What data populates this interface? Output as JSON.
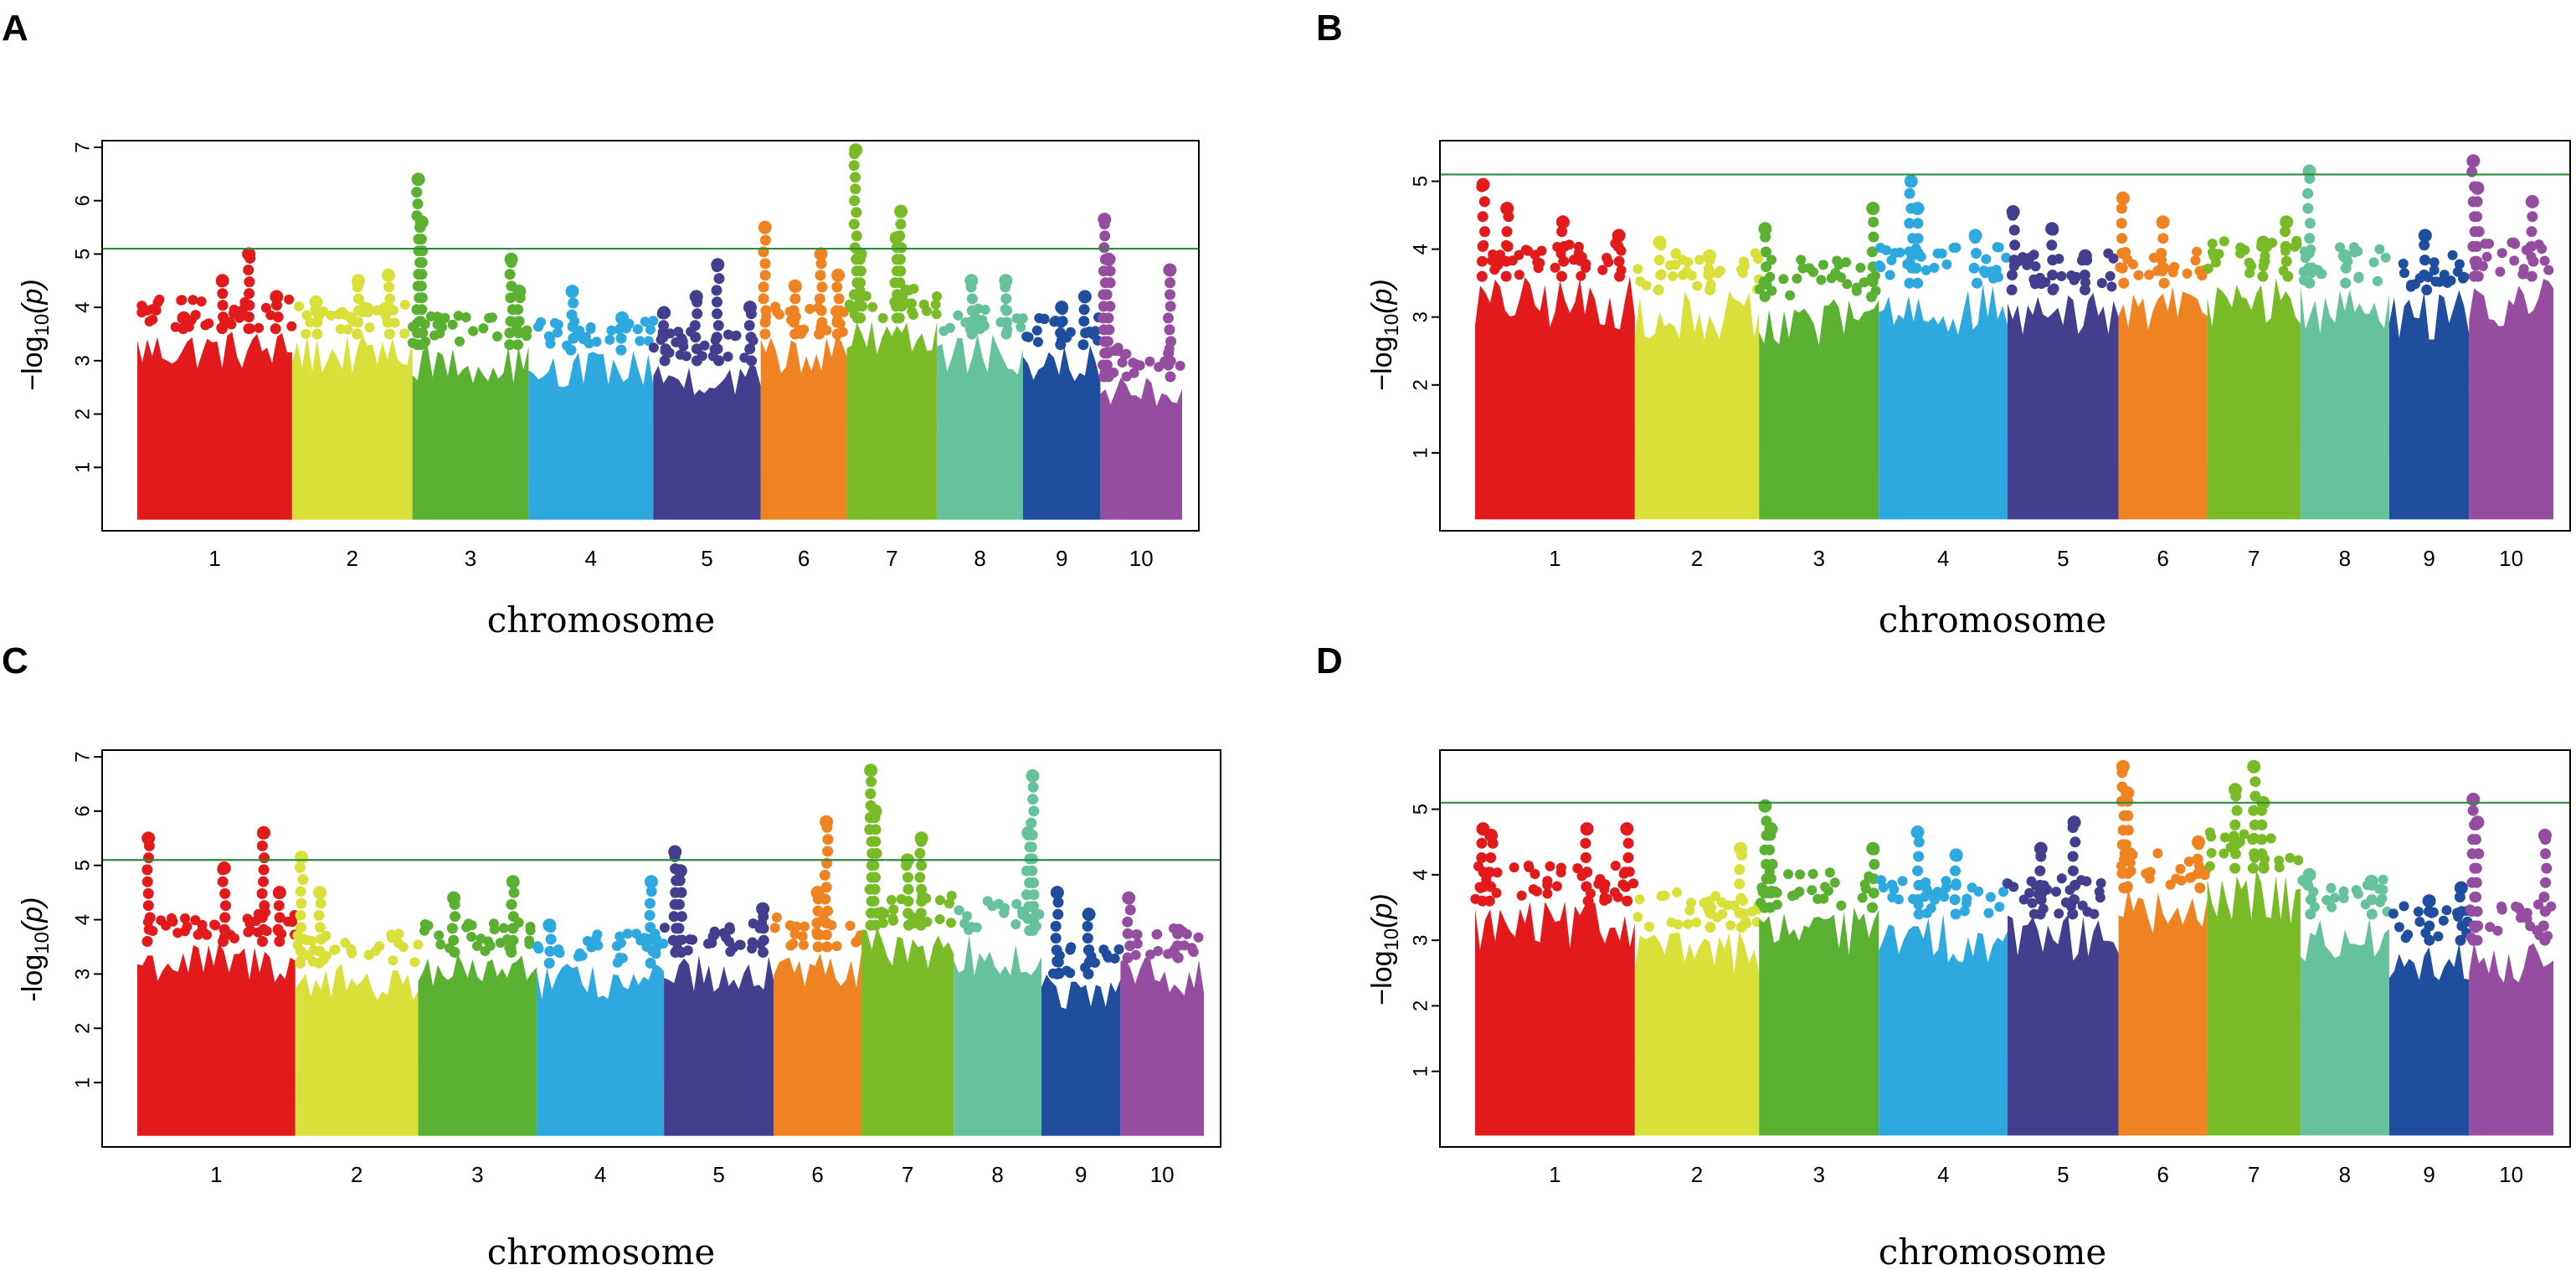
{
  "chart_data": [
    {
      "panel": "A",
      "type": "scatter",
      "subtype": "manhattan",
      "xlabel": "chromosome",
      "ylabel_prefix": "−log",
      "ylabel_sub": "10",
      "ylabel_suffix": "(p)",
      "ylim": [
        0,
        7
      ],
      "yticks": [
        "1",
        "2",
        "3",
        "4",
        "5",
        "6",
        "7"
      ],
      "threshold": 5.1,
      "categories": [
        "1",
        "2",
        "3",
        "4",
        "5",
        "6",
        "7",
        "8",
        "9",
        "10"
      ],
      "chrom_widths": [
        1.8,
        1.4,
        1.35,
        1.45,
        1.25,
        1.0,
        1.05,
        1.0,
        0.9,
        0.95
      ],
      "series": [
        {
          "name": "1",
          "base_max": 3.6,
          "peaks": [
            [
              0.3,
              3.8
            ],
            [
              0.55,
              4.5
            ],
            [
              0.72,
              5.0
            ],
            [
              0.9,
              4.2
            ]
          ]
        },
        {
          "name": "2",
          "base_max": 3.5,
          "peaks": [
            [
              0.2,
              4.1
            ],
            [
              0.55,
              4.5
            ],
            [
              0.8,
              4.6
            ]
          ]
        },
        {
          "name": "3",
          "base_max": 3.3,
          "peaks": [
            [
              0.05,
              6.4
            ],
            [
              0.08,
              5.6
            ],
            [
              0.85,
              4.9
            ],
            [
              0.92,
              4.3
            ]
          ]
        },
        {
          "name": "4",
          "base_max": 3.2,
          "peaks": [
            [
              0.35,
              4.3
            ],
            [
              0.75,
              3.8
            ]
          ]
        },
        {
          "name": "5",
          "base_max": 3.0,
          "peaks": [
            [
              0.1,
              3.9
            ],
            [
              0.4,
              4.2
            ],
            [
              0.6,
              4.8
            ],
            [
              0.9,
              4.0
            ]
          ]
        },
        {
          "name": "6",
          "base_max": 3.5,
          "peaks": [
            [
              0.05,
              5.5
            ],
            [
              0.4,
              4.4
            ],
            [
              0.7,
              5.0
            ],
            [
              0.9,
              4.6
            ]
          ]
        },
        {
          "name": "7",
          "base_max": 3.8,
          "peaks": [
            [
              0.1,
              6.95
            ],
            [
              0.15,
              5.0
            ],
            [
              0.6,
              5.8
            ],
            [
              0.55,
              5.3
            ]
          ]
        },
        {
          "name": "8",
          "base_max": 3.5,
          "peaks": [
            [
              0.4,
              4.5
            ],
            [
              0.8,
              4.5
            ]
          ]
        },
        {
          "name": "9",
          "base_max": 3.3,
          "peaks": [
            [
              0.5,
              4.0
            ],
            [
              0.8,
              4.2
            ]
          ]
        },
        {
          "name": "10",
          "base_max": 2.7,
          "peaks": [
            [
              0.05,
              5.65
            ],
            [
              0.1,
              4.9
            ],
            [
              0.85,
              4.7
            ]
          ]
        }
      ],
      "colors": [
        "#e31a1c",
        "#d9e03a",
        "#5ab031",
        "#2ea9df",
        "#433e8e",
        "#ef8321",
        "#78bb27",
        "#66c19d",
        "#1f4e9e",
        "#954e9f"
      ],
      "threshold_color": "#2e8b3a"
    },
    {
      "panel": "B",
      "type": "scatter",
      "subtype": "manhattan",
      "xlabel": "chromosome",
      "ylabel_prefix": "−log",
      "ylabel_sub": "10",
      "ylabel_suffix": "(p)",
      "ylim": [
        0,
        5.5
      ],
      "yticks": [
        "1",
        "2",
        "3",
        "4",
        "5"
      ],
      "threshold": 5.1,
      "categories": [
        "1",
        "2",
        "3",
        "4",
        "5",
        "6",
        "7",
        "8",
        "9",
        "10"
      ],
      "chrom_widths": [
        1.8,
        1.4,
        1.35,
        1.45,
        1.25,
        1.0,
        1.05,
        1.0,
        0.9,
        0.95
      ],
      "series": [
        {
          "name": "1",
          "base_max": 3.6,
          "peaks": [
            [
              0.05,
              4.95
            ],
            [
              0.2,
              4.6
            ],
            [
              0.55,
              4.4
            ],
            [
              0.9,
              4.2
            ]
          ]
        },
        {
          "name": "2",
          "base_max": 3.4,
          "peaks": [
            [
              0.2,
              4.1
            ],
            [
              0.6,
              3.9
            ]
          ]
        },
        {
          "name": "3",
          "base_max": 3.3,
          "peaks": [
            [
              0.05,
              4.3
            ],
            [
              0.95,
              4.6
            ]
          ]
        },
        {
          "name": "4",
          "base_max": 3.5,
          "peaks": [
            [
              0.25,
              5.0
            ],
            [
              0.3,
              4.6
            ],
            [
              0.75,
              4.2
            ]
          ]
        },
        {
          "name": "5",
          "base_max": 3.4,
          "peaks": [
            [
              0.05,
              4.55
            ],
            [
              0.4,
              4.3
            ],
            [
              0.7,
              3.9
            ]
          ]
        },
        {
          "name": "6",
          "base_max": 3.5,
          "peaks": [
            [
              0.05,
              4.75
            ],
            [
              0.5,
              4.4
            ]
          ]
        },
        {
          "name": "7",
          "base_max": 3.6,
          "peaks": [
            [
              0.85,
              4.4
            ],
            [
              0.6,
              4.1
            ]
          ]
        },
        {
          "name": "8",
          "base_max": 3.5,
          "peaks": [
            [
              0.1,
              5.15
            ],
            [
              0.5,
              3.9
            ]
          ]
        },
        {
          "name": "9",
          "base_max": 3.4,
          "peaks": [
            [
              0.45,
              4.2
            ]
          ]
        },
        {
          "name": "10",
          "base_max": 3.6,
          "peaks": [
            [
              0.05,
              5.3
            ],
            [
              0.1,
              4.9
            ],
            [
              0.75,
              4.7
            ]
          ]
        }
      ],
      "colors": [
        "#e31a1c",
        "#d9e03a",
        "#5ab031",
        "#2ea9df",
        "#433e8e",
        "#ef8321",
        "#78bb27",
        "#66c19d",
        "#1f4e9e",
        "#954e9f"
      ],
      "threshold_color": "#2e8b3a"
    },
    {
      "panel": "C",
      "type": "scatter",
      "subtype": "manhattan",
      "xlabel": "chromosome",
      "ylabel_prefix": "-log",
      "ylabel_sub": "10",
      "ylabel_suffix": "(p)",
      "ylim": [
        0,
        7
      ],
      "yticks": [
        "1",
        "2",
        "3",
        "4",
        "5",
        "6",
        "7"
      ],
      "threshold": 5.1,
      "categories": [
        "1",
        "2",
        "3",
        "4",
        "5",
        "6",
        "7",
        "8",
        "9",
        "10"
      ],
      "chrom_widths": [
        1.8,
        1.4,
        1.35,
        1.45,
        1.25,
        1.0,
        1.05,
        1.0,
        0.9,
        0.95
      ],
      "series": [
        {
          "name": "1",
          "base_max": 3.6,
          "peaks": [
            [
              0.07,
              5.5
            ],
            [
              0.55,
              4.95
            ],
            [
              0.8,
              5.6
            ],
            [
              0.9,
              4.5
            ]
          ]
        },
        {
          "name": "2",
          "base_max": 3.2,
          "peaks": [
            [
              0.05,
              5.15
            ],
            [
              0.2,
              4.5
            ]
          ]
        },
        {
          "name": "3",
          "base_max": 3.4,
          "peaks": [
            [
              0.3,
              4.4
            ],
            [
              0.8,
              4.7
            ]
          ]
        },
        {
          "name": "4",
          "base_max": 3.2,
          "peaks": [
            [
              0.1,
              3.9
            ],
            [
              0.9,
              4.7
            ]
          ]
        },
        {
          "name": "5",
          "base_max": 3.4,
          "peaks": [
            [
              0.1,
              5.25
            ],
            [
              0.15,
              4.9
            ],
            [
              0.9,
              4.2
            ]
          ]
        },
        {
          "name": "6",
          "base_max": 3.5,
          "peaks": [
            [
              0.6,
              5.8
            ],
            [
              0.5,
              4.5
            ]
          ]
        },
        {
          "name": "7",
          "base_max": 3.9,
          "peaks": [
            [
              0.1,
              6.75
            ],
            [
              0.15,
              6.0
            ],
            [
              0.65,
              5.5
            ],
            [
              0.5,
              5.1
            ]
          ]
        },
        {
          "name": "8",
          "base_max": 3.8,
          "peaks": [
            [
              0.9,
              6.65
            ],
            [
              0.85,
              5.6
            ]
          ]
        },
        {
          "name": "9",
          "base_max": 3.0,
          "peaks": [
            [
              0.2,
              4.5
            ],
            [
              0.6,
              4.1
            ]
          ]
        },
        {
          "name": "10",
          "base_max": 3.3,
          "peaks": [
            [
              0.1,
              4.4
            ],
            [
              0.7,
              3.8
            ]
          ]
        }
      ],
      "colors": [
        "#e31a1c",
        "#d9e03a",
        "#5ab031",
        "#2ea9df",
        "#433e8e",
        "#ef8321",
        "#78bb27",
        "#66c19d",
        "#1f4e9e",
        "#954e9f"
      ],
      "threshold_color": "#2e8b3a"
    },
    {
      "panel": "D",
      "type": "scatter",
      "subtype": "manhattan",
      "xlabel": "chromosome",
      "ylabel_prefix": "−log",
      "ylabel_sub": "10",
      "ylabel_suffix": "(p)",
      "ylim": [
        0,
        5.8
      ],
      "yticks": [
        "1",
        "2",
        "3",
        "4",
        "5"
      ],
      "threshold": 5.1,
      "categories": [
        "1",
        "2",
        "3",
        "4",
        "5",
        "6",
        "7",
        "8",
        "9",
        "10"
      ],
      "chrom_widths": [
        1.8,
        1.4,
        1.35,
        1.45,
        1.25,
        1.0,
        1.05,
        1.0,
        0.9,
        0.95
      ],
      "series": [
        {
          "name": "1",
          "base_max": 3.6,
          "peaks": [
            [
              0.05,
              4.7
            ],
            [
              0.1,
              4.6
            ],
            [
              0.7,
              4.7
            ],
            [
              0.95,
              4.7
            ]
          ]
        },
        {
          "name": "2",
          "base_max": 3.2,
          "peaks": [
            [
              0.85,
              4.4
            ],
            [
              0.6,
              3.5
            ]
          ]
        },
        {
          "name": "3",
          "base_max": 3.5,
          "peaks": [
            [
              0.05,
              5.05
            ],
            [
              0.1,
              4.7
            ],
            [
              0.95,
              4.4
            ]
          ]
        },
        {
          "name": "4",
          "base_max": 3.4,
          "peaks": [
            [
              0.3,
              4.65
            ],
            [
              0.6,
              4.3
            ]
          ]
        },
        {
          "name": "5",
          "base_max": 3.4,
          "peaks": [
            [
              0.3,
              4.4
            ],
            [
              0.6,
              4.8
            ]
          ]
        },
        {
          "name": "6",
          "base_max": 3.8,
          "peaks": [
            [
              0.05,
              5.65
            ],
            [
              0.1,
              5.25
            ],
            [
              0.9,
              4.5
            ]
          ]
        },
        {
          "name": "7",
          "base_max": 4.1,
          "peaks": [
            [
              0.5,
              5.65
            ],
            [
              0.3,
              5.3
            ],
            [
              0.6,
              5.1
            ]
          ]
        },
        {
          "name": "8",
          "base_max": 3.4,
          "peaks": [
            [
              0.1,
              4.0
            ],
            [
              0.8,
              3.9
            ]
          ]
        },
        {
          "name": "9",
          "base_max": 3.0,
          "peaks": [
            [
              0.5,
              3.6
            ],
            [
              0.9,
              3.8
            ]
          ]
        },
        {
          "name": "10",
          "base_max": 3.0,
          "peaks": [
            [
              0.05,
              5.15
            ],
            [
              0.1,
              4.8
            ],
            [
              0.9,
              4.6
            ]
          ]
        }
      ],
      "colors": [
        "#e31a1c",
        "#d9e03a",
        "#5ab031",
        "#2ea9df",
        "#433e8e",
        "#ef8321",
        "#78bb27",
        "#66c19d",
        "#1f4e9e",
        "#954e9f"
      ],
      "threshold_color": "#2e8b3a"
    }
  ]
}
